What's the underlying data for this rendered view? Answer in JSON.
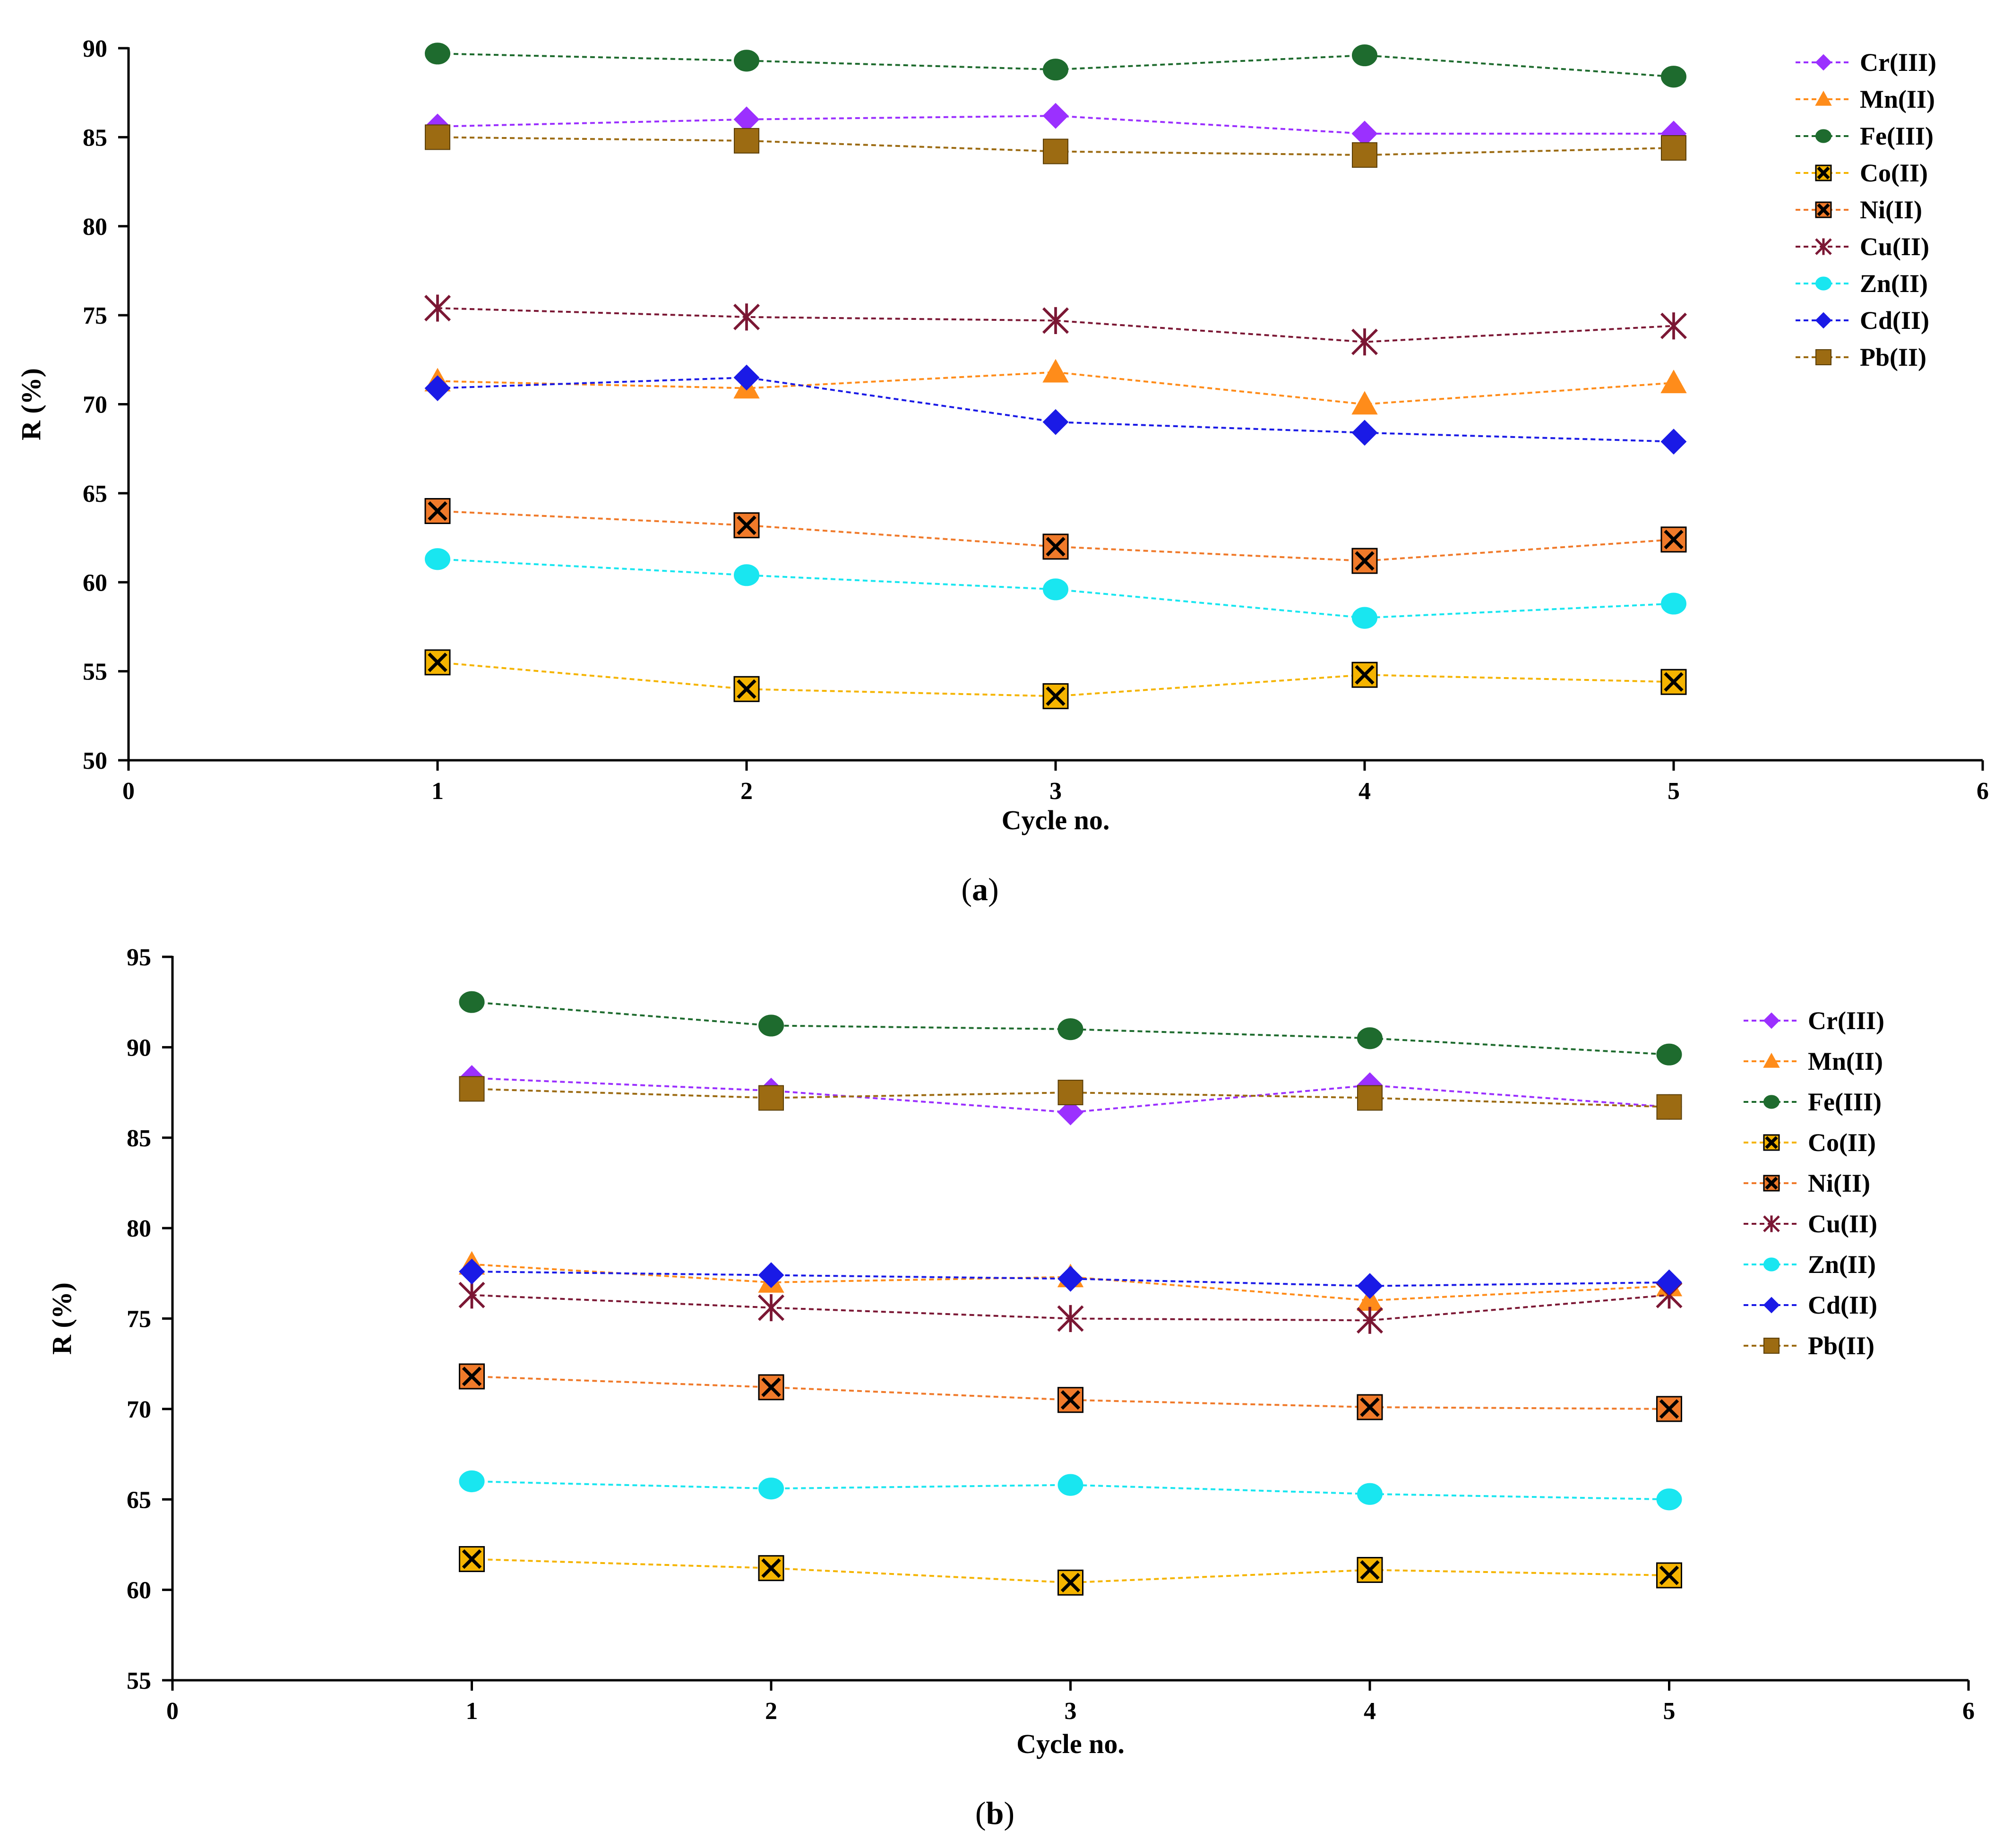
{
  "chart_data": [
    {
      "type": "line",
      "panel_label": "(a)",
      "panel_letter": "a",
      "xlabel": "Cycle no.",
      "ylabel": "R (%)",
      "xlim": [
        0,
        6
      ],
      "ylim": [
        50,
        90
      ],
      "xticks": [
        "0",
        "1",
        "2",
        "3",
        "4",
        "5",
        "6"
      ],
      "yticks": [
        "50",
        "55",
        "60",
        "65",
        "70",
        "75",
        "80",
        "85",
        "90"
      ],
      "grid": false,
      "legend_position": "top-right",
      "x": [
        1,
        2,
        3,
        4,
        5
      ],
      "series": [
        {
          "name": "Cr(III)",
          "color": "#9B30FF",
          "marker": "diamond",
          "values": [
            85.6,
            86.0,
            86.2,
            85.2,
            85.2
          ]
        },
        {
          "name": "Mn(II)",
          "color": "#FF8C1A",
          "marker": "triangle",
          "values": [
            71.3,
            70.9,
            71.8,
            70.0,
            71.2
          ]
        },
        {
          "name": "Fe(III)",
          "color": "#1E6B2E",
          "marker": "circle",
          "values": [
            89.7,
            89.3,
            88.8,
            89.6,
            88.4
          ]
        },
        {
          "name": "Co(II)",
          "color": "#F5B400",
          "marker": "boxx",
          "values": [
            55.5,
            54.0,
            53.6,
            54.8,
            54.4
          ]
        },
        {
          "name": "Ni(II)",
          "color": "#F07A2A",
          "marker": "boxx",
          "values": [
            64.0,
            63.2,
            62.0,
            61.2,
            62.4
          ]
        },
        {
          "name": "Cu(II)",
          "color": "#7B1734",
          "marker": "star",
          "values": [
            75.4,
            74.9,
            74.7,
            73.5,
            74.4
          ]
        },
        {
          "name": "Zn(II)",
          "color": "#19E6F0",
          "marker": "circle",
          "values": [
            61.3,
            60.4,
            59.6,
            58.0,
            58.8
          ]
        },
        {
          "name": "Cd(II)",
          "color": "#1A1AE6",
          "marker": "diamond",
          "values": [
            70.9,
            71.5,
            69.0,
            68.4,
            67.9
          ]
        },
        {
          "name": "Pb(II)",
          "color": "#9C6B12",
          "marker": "square",
          "values": [
            85.0,
            84.8,
            84.2,
            84.0,
            84.4
          ]
        }
      ]
    },
    {
      "type": "line",
      "panel_label": "(b)",
      "panel_letter": "b",
      "xlabel": "Cycle no.",
      "ylabel": "R (%)",
      "xlim": [
        0,
        6
      ],
      "ylim": [
        55,
        95
      ],
      "xticks": [
        "0",
        "1",
        "2",
        "3",
        "4",
        "5",
        "6"
      ],
      "yticks": [
        "55",
        "60",
        "65",
        "70",
        "75",
        "80",
        "85",
        "90",
        "95"
      ],
      "grid": false,
      "legend_position": "top-right",
      "x": [
        1,
        2,
        3,
        4,
        5
      ],
      "series": [
        {
          "name": "Cr(III)",
          "color": "#9B30FF",
          "marker": "diamond",
          "values": [
            88.3,
            87.6,
            86.4,
            87.9,
            86.7
          ]
        },
        {
          "name": "Mn(II)",
          "color": "#FF8C1A",
          "marker": "triangle",
          "values": [
            78.0,
            77.0,
            77.3,
            76.0,
            76.8
          ]
        },
        {
          "name": "Fe(III)",
          "color": "#1E6B2E",
          "marker": "circle",
          "values": [
            92.5,
            91.2,
            91.0,
            90.5,
            89.6
          ]
        },
        {
          "name": "Co(II)",
          "color": "#F5B400",
          "marker": "boxx",
          "values": [
            61.7,
            61.2,
            60.4,
            61.1,
            60.8
          ]
        },
        {
          "name": "Ni(II)",
          "color": "#F07A2A",
          "marker": "boxx",
          "values": [
            71.8,
            71.2,
            70.5,
            70.1,
            70.0
          ]
        },
        {
          "name": "Cu(II)",
          "color": "#7B1734",
          "marker": "star",
          "values": [
            76.3,
            75.6,
            75.0,
            74.9,
            76.3
          ]
        },
        {
          "name": "Zn(II)",
          "color": "#19E6F0",
          "marker": "circle",
          "values": [
            66.0,
            65.6,
            65.8,
            65.3,
            65.0
          ]
        },
        {
          "name": "Cd(II)",
          "color": "#1A1AE6",
          "marker": "diamond",
          "values": [
            77.6,
            77.4,
            77.2,
            76.8,
            77.0
          ]
        },
        {
          "name": "Pb(II)",
          "color": "#9C6B12",
          "marker": "square",
          "values": [
            87.7,
            87.2,
            87.5,
            87.2,
            86.7
          ]
        }
      ]
    }
  ]
}
